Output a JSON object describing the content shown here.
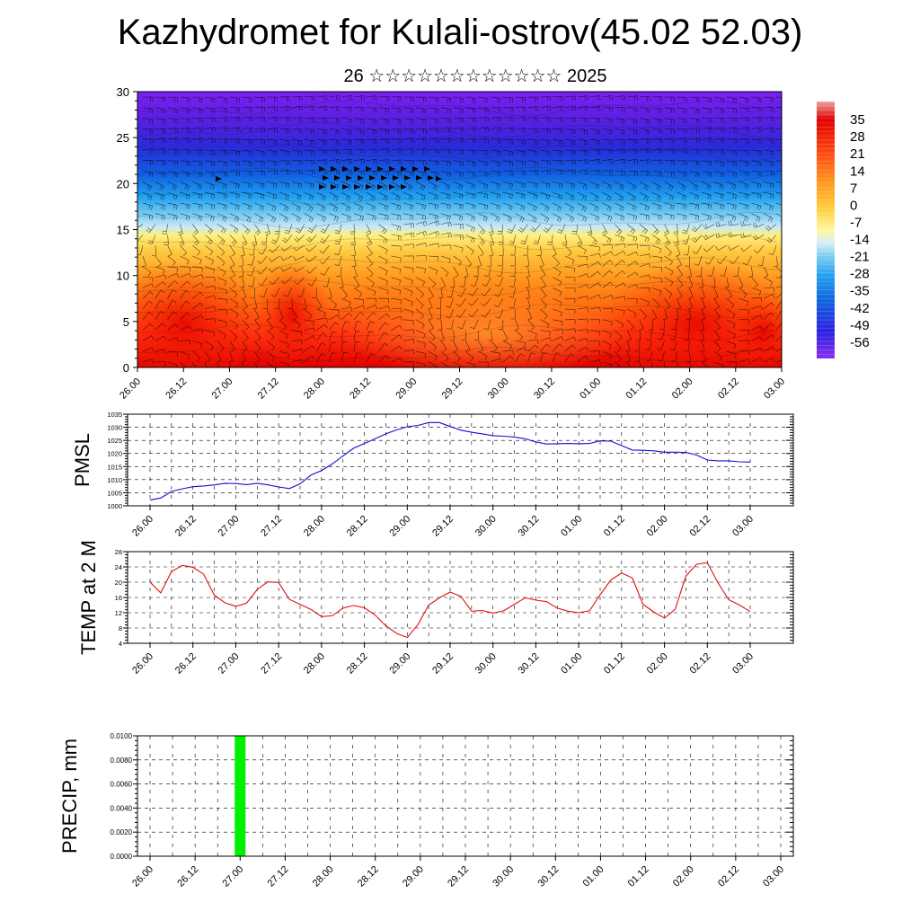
{
  "title": "Kazhydromet for Kulali-ostrov(45.02 52.03)",
  "subtitle": "26 ☆☆☆☆☆☆☆☆☆☆☆☆ 2025",
  "colors": {
    "pmsl_line": "#1010d0",
    "temp_line": "#e01010",
    "precip_bar": "#00f000"
  },
  "chart_data": [
    {
      "type": "heatmap",
      "name": "cross-section",
      "ylim": [
        0,
        30
      ],
      "y_ticks": [
        "0",
        "5",
        "10",
        "15",
        "20",
        "25",
        "30"
      ],
      "x_ticks": [
        "26.00",
        "26.12",
        "27.00",
        "27.12",
        "28.00",
        "28.12",
        "29.00",
        "29.12",
        "30.00",
        "30.12",
        "01.00",
        "01.12",
        "02.00",
        "02.12",
        "03.00"
      ],
      "colorbar_labels": [
        "35",
        "28",
        "21",
        "14",
        "7",
        "0",
        "-7",
        "-14",
        "-21",
        "-28",
        "-35",
        "-42",
        "-49",
        "-56"
      ],
      "colorbar_range": [
        -63,
        42
      ]
    },
    {
      "type": "line",
      "ylabel": "PMSL",
      "ylim": [
        1000,
        1035
      ],
      "y_ticks": [
        "1000",
        "1005",
        "1010",
        "1015",
        "1020",
        "1025",
        "1030",
        "1035"
      ],
      "x_ticks": [
        "26.00",
        "26.12",
        "27.00",
        "27.12",
        "28.00",
        "28.12",
        "29.00",
        "29.12",
        "30.00",
        "30.12",
        "01.00",
        "01.12",
        "02.00",
        "02.12",
        "03.00"
      ],
      "x": [
        0,
        3,
        6,
        9,
        12,
        15,
        18,
        21,
        24,
        27,
        30,
        33,
        36,
        39,
        42,
        45,
        48,
        51,
        54,
        57,
        60,
        63,
        66,
        69,
        72,
        75,
        78,
        81,
        84,
        87,
        90,
        93,
        96,
        99,
        102,
        105,
        108,
        111,
        114,
        117,
        120,
        123,
        126,
        129,
        132,
        135,
        138,
        141,
        144,
        147,
        150,
        153,
        156,
        159,
        162,
        165,
        168
      ],
      "values": [
        1002.2,
        1003,
        1005.5,
        1006.5,
        1007.3,
        1007.6,
        1008,
        1008.6,
        1008.5,
        1008.1,
        1008.6,
        1008,
        1007.2,
        1006.6,
        1008.4,
        1011.7,
        1013.5,
        1016,
        1019,
        1022,
        1023.8,
        1025.6,
        1027.5,
        1029,
        1030.2,
        1030.7,
        1031.8,
        1031.8,
        1030.3,
        1028.9,
        1028.1,
        1027.5,
        1026.8,
        1026.6,
        1026.3,
        1025.6,
        1024.4,
        1023.6,
        1023.7,
        1023.8,
        1023.7,
        1023.8,
        1024.8,
        1024.7,
        1023,
        1021.3,
        1021.2,
        1021,
        1020.5,
        1020.5,
        1020.4,
        1019.4,
        1017.5,
        1017.2,
        1017.2,
        1016.8,
        1016.7
      ]
    },
    {
      "type": "line",
      "ylabel": "TEMP at 2 M",
      "ylim": [
        4,
        28
      ],
      "y_ticks": [
        "4",
        "8",
        "12",
        "16",
        "20",
        "24",
        "28"
      ],
      "x_ticks": [
        "26.00",
        "26.12",
        "27.00",
        "27.12",
        "28.00",
        "28.12",
        "29.00",
        "29.12",
        "30.00",
        "30.12",
        "01.00",
        "01.12",
        "02.00",
        "02.12",
        "03.00"
      ],
      "x": [
        0,
        3,
        6,
        9,
        12,
        15,
        18,
        21,
        24,
        27,
        30,
        33,
        36,
        39,
        42,
        45,
        48,
        51,
        54,
        57,
        60,
        63,
        66,
        69,
        72,
        75,
        78,
        81,
        84,
        87,
        90,
        93,
        96,
        99,
        102,
        105,
        108,
        111,
        114,
        117,
        120,
        123,
        126,
        129,
        132,
        135,
        138,
        141,
        144,
        147,
        150,
        153,
        156,
        159,
        162,
        165,
        168
      ],
      "values": [
        20,
        17.2,
        22.8,
        24.4,
        23.9,
        22.1,
        16.6,
        14.6,
        13.7,
        14.5,
        18.1,
        20.1,
        19.9,
        15.5,
        14.2,
        12.9,
        11,
        11.2,
        13.2,
        13.9,
        13.3,
        11.4,
        8.6,
        6.6,
        5.5,
        8.9,
        14,
        15.9,
        17.4,
        16.3,
        12.4,
        12.6,
        11.9,
        12.5,
        14.2,
        15.9,
        15.3,
        14.9,
        13.2,
        12.4,
        12,
        12.5,
        16.7,
        20.6,
        22.4,
        21.1,
        14.2,
        12.2,
        10.6,
        12.9,
        21.6,
        24.7,
        25.1,
        19.8,
        15.4,
        14,
        12.3
      ]
    },
    {
      "type": "bar",
      "ylabel": "PRECIP, mm",
      "ylim": [
        0,
        0.01
      ],
      "y_ticks": [
        "0.0000",
        "0.0020",
        "0.0040",
        "0.0060",
        "0.0080",
        "0.0100"
      ],
      "x_ticks": [
        "26.00",
        "26.12",
        "27.00",
        "27.12",
        "28.00",
        "28.12",
        "29.00",
        "29.12",
        "30.00",
        "30.12",
        "01.00",
        "01.12",
        "02.00",
        "02.12",
        "03.00"
      ],
      "bars": [
        {
          "x": 24,
          "value": 0.01
        }
      ]
    }
  ]
}
